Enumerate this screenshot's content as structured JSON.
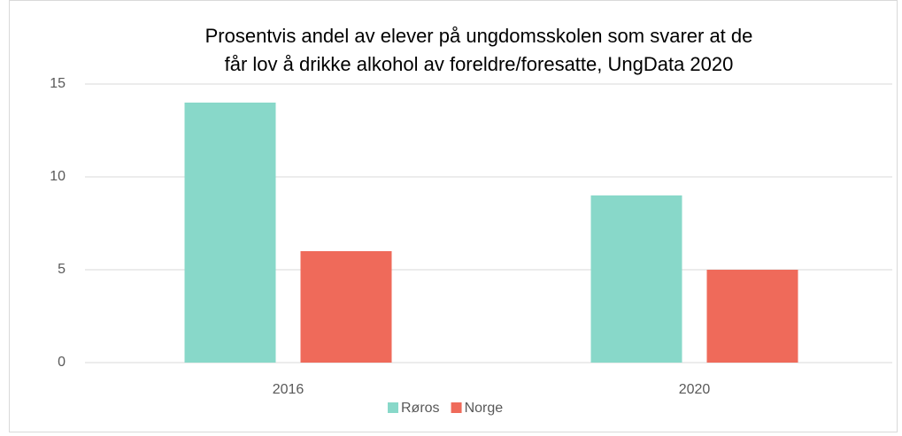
{
  "chart_data": {
    "type": "bar",
    "title": [
      "Prosentvis andel av elever på ungdomsskolen som svarer at de",
      "får lov å drikke alkohol av foreldre/foresatte, UngData 2020"
    ],
    "categories": [
      "2016",
      "2020"
    ],
    "series": [
      {
        "name": "Røros",
        "color": "#88d8c9",
        "values": [
          14,
          9
        ]
      },
      {
        "name": "Norge",
        "color": "#ef6a5a",
        "values": [
          6,
          5
        ]
      }
    ],
    "ylim": [
      0,
      15
    ],
    "yticks": [
      0,
      5,
      10,
      15
    ],
    "grid": true,
    "legend": "bottom"
  }
}
